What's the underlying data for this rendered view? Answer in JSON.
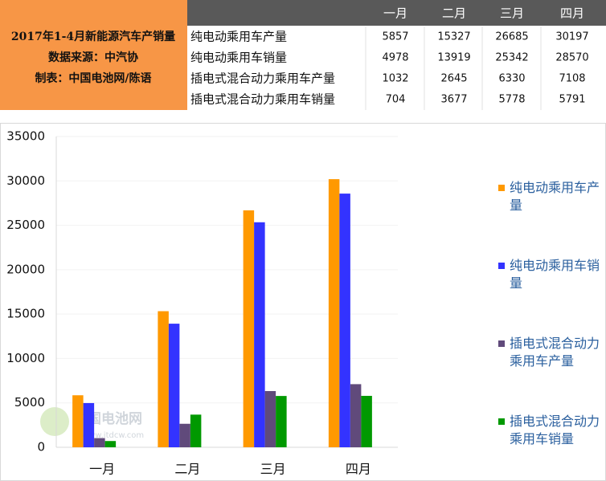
{
  "header": {
    "lines": [
      "2017年1-4月新能源汽车产销量",
      "数据来源：中汽协",
      "制表：中国电池网/陈语"
    ]
  },
  "table": {
    "columns": [
      "一月",
      "二月",
      "三月",
      "四月"
    ],
    "rows": [
      {
        "label": "纯电动乘用车产量",
        "values": [
          5857,
          15327,
          26685,
          30197
        ]
      },
      {
        "label": "纯电动乘用车销量",
        "values": [
          4978,
          13919,
          25342,
          28570
        ]
      },
      {
        "label": "插电式混合动力乘用车产量",
        "values": [
          1032,
          2645,
          6330,
          7108
        ]
      },
      {
        "label": "插电式混合动力乘用车销量",
        "values": [
          704,
          3677,
          5778,
          5791
        ]
      }
    ]
  },
  "watermark": {
    "name": "中国电池网",
    "url": "www.itdcw.com"
  },
  "chart_data": {
    "type": "bar",
    "categories": [
      "一月",
      "二月",
      "三月",
      "四月"
    ],
    "series": [
      {
        "name": "纯电动乘用车产量",
        "color": "#ff9900",
        "values": [
          5857,
          15327,
          26685,
          30197
        ]
      },
      {
        "name": "纯电动乘用车销量",
        "color": "#3333ff",
        "values": [
          4978,
          13919,
          25342,
          28570
        ]
      },
      {
        "name": "插电式混合动力乘用车产量",
        "color": "#604a7b",
        "values": [
          1032,
          2645,
          6330,
          7108
        ]
      },
      {
        "name": "插电式混合动力乘用车销量",
        "color": "#009900",
        "values": [
          704,
          3677,
          5778,
          5791
        ]
      }
    ],
    "ylim": [
      0,
      35000
    ],
    "yticks": [
      0,
      5000,
      10000,
      15000,
      20000,
      25000,
      30000,
      35000
    ],
    "grid": true,
    "legend": "right"
  }
}
